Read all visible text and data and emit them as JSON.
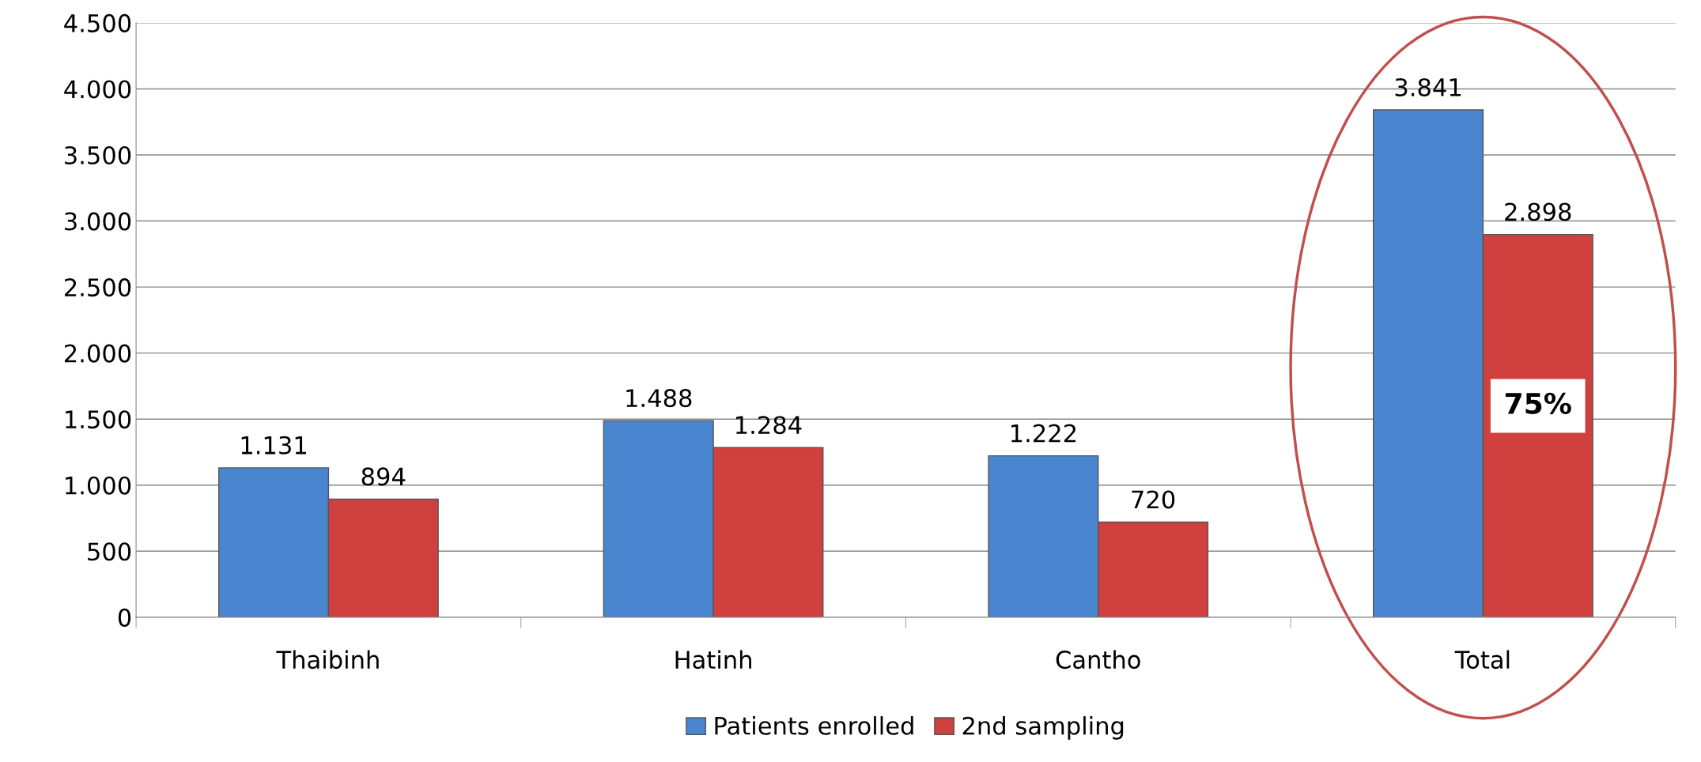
{
  "chart_data": {
    "type": "bar",
    "categories": [
      "Thaibinh",
      "Hatinh",
      "Cantho",
      "Total"
    ],
    "series": [
      {
        "name": "Patients enrolled",
        "color": "#4a86d0",
        "values": [
          1131,
          1488,
          1222,
          3841
        ],
        "value_labels": [
          "1.131",
          "1.488",
          "1.222",
          "3.841"
        ]
      },
      {
        "name": "2nd sampling",
        "color": "#d0403e",
        "values": [
          894,
          1284,
          720,
          2898
        ],
        "value_labels": [
          "894",
          "1.284",
          "720",
          "2.898"
        ]
      }
    ],
    "ylim": [
      0,
      4500
    ],
    "yticks": [
      0,
      500,
      {
        "value": 1000,
        "label": "1.000"
      },
      {
        "value": 1500,
        "label": "1.500"
      },
      {
        "value": 2000,
        "label": "2.000"
      },
      {
        "value": 2500,
        "label": "2.500"
      },
      {
        "value": 3000,
        "label": "3.000"
      },
      {
        "value": 3500,
        "label": "3.500"
      },
      {
        "value": 4000,
        "label": "4.000"
      },
      {
        "value": 4500,
        "label": "4.500"
      }
    ],
    "grid": "y",
    "legend": "bottom",
    "annotations": [
      {
        "text": "75%",
        "x": "Total",
        "y": 1600
      }
    ]
  }
}
